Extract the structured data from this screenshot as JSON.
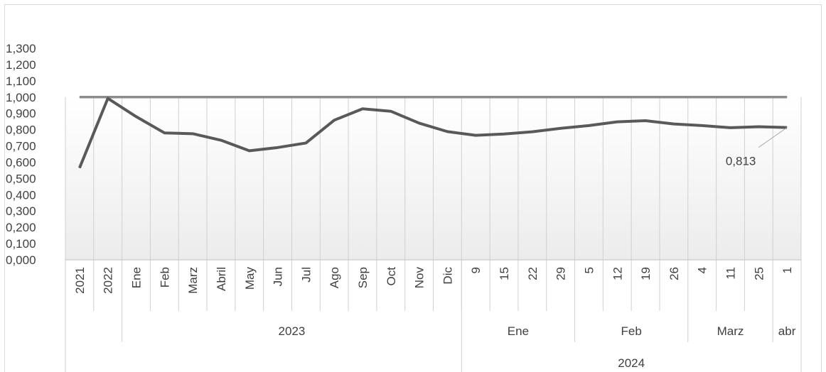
{
  "chart_data": {
    "type": "line",
    "title": "",
    "xlabel": "",
    "ylabel": "",
    "ylim": [
      0,
      1.3
    ],
    "grid": "vertical",
    "y_ticks": [
      "0,000",
      "0,100",
      "0,200",
      "0,300",
      "0,400",
      "0,500",
      "0,600",
      "0,700",
      "0,800",
      "0,900",
      "1,000",
      "1,100",
      "1,200",
      "1,300"
    ],
    "categories": [
      "2021",
      "2022",
      "Ene",
      "Feb",
      "Marz",
      "Abril",
      "May",
      "Jun",
      "Jul",
      "Ago",
      "Sep",
      "Oct",
      "Nov",
      "Dic",
      "9",
      "15",
      "22",
      "29",
      "5",
      "12",
      "19",
      "26",
      "4",
      "11",
      "25",
      "1"
    ],
    "category_groups_level2": [
      {
        "label": "2023",
        "start": 2,
        "end": 13
      },
      {
        "label": "Ene",
        "start": 14,
        "end": 17
      },
      {
        "label": "Feb",
        "start": 18,
        "end": 21
      },
      {
        "label": "Marz",
        "start": 22,
        "end": 24
      },
      {
        "label": "abr",
        "start": 25,
        "end": 25
      }
    ],
    "category_groups_level3": [
      {
        "label": "2024",
        "start": 14,
        "end": 25
      }
    ],
    "series": [
      {
        "values": [
          0.565,
          0.992,
          0.88,
          0.78,
          0.775,
          0.735,
          0.67,
          0.69,
          0.718,
          0.858,
          0.928,
          0.913,
          0.84,
          0.788,
          0.765,
          0.773,
          0.787,
          0.808,
          0.825,
          0.848,
          0.855,
          0.835,
          0.825,
          0.812,
          0.818,
          0.813
        ],
        "color": "#595959"
      },
      {
        "values": [
          1.0,
          1.0,
          1.0,
          1.0,
          1.0,
          1.0,
          1.0,
          1.0,
          1.0,
          1.0,
          1.0,
          1.0,
          1.0,
          1.0,
          1.0,
          1.0,
          1.0,
          1.0,
          1.0,
          1.0,
          1.0,
          1.0,
          1.0,
          1.0,
          1.0,
          1.0
        ],
        "color": "#8c8c8c"
      }
    ],
    "annotations": [
      {
        "text": "0,813",
        "category_index": 25,
        "series_index": 0
      }
    ]
  }
}
